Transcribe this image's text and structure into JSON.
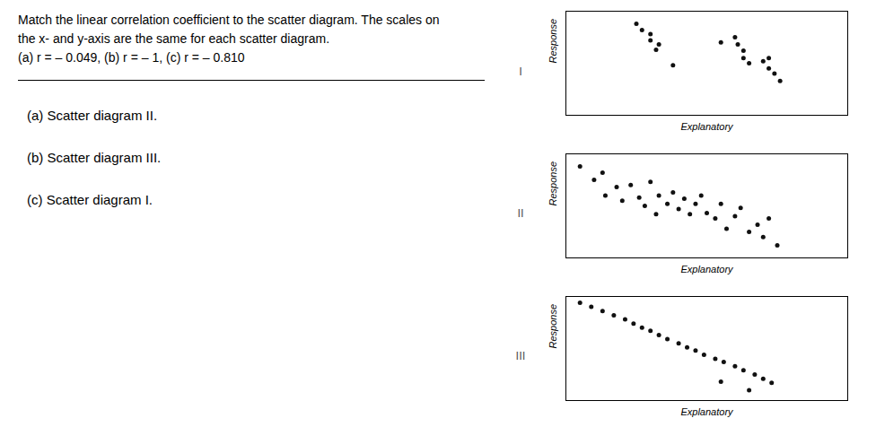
{
  "chart_data": [
    {
      "type": "scatter",
      "title": "I",
      "x_label": "Explanatory",
      "y_label": "Response",
      "color": "#111111",
      "xlim": [
        0,
        1
      ],
      "ylim": [
        0,
        1
      ],
      "tick_labels": false,
      "grid": false,
      "annotations": [
        "Match the linear correlation coefficient to the scatter diagram. The scales on\nthe x- and y-axis are the same for each scatter diagram.\n(a) r = – 0.049, (b) r = – 1, (c) r = – 0.810",
        "(a) Scatter diagram II.",
        "(b) Scatter diagram III.",
        "(c) Scatter diagram I."
      ],
      "x": [
        0.25,
        0.27,
        0.3,
        0.3,
        0.33,
        0.32,
        0.38,
        0.55,
        0.6,
        0.61,
        0.63,
        0.63,
        0.65,
        0.7,
        0.72,
        0.72,
        0.74,
        0.76
      ],
      "values": [
        0.88,
        0.82,
        0.78,
        0.72,
        0.68,
        0.63,
        0.48,
        0.7,
        0.75,
        0.68,
        0.62,
        0.55,
        0.5,
        0.52,
        0.55,
        0.45,
        0.4,
        0.33
      ]
    },
    {
      "type": "scatter",
      "title": "II",
      "x_label": "Explanatory",
      "y_label": "Response",
      "color": "#111111",
      "xlim": [
        0,
        1
      ],
      "ylim": [
        0,
        1
      ],
      "tick_labels": false,
      "grid": false,
      "x": [
        0.05,
        0.1,
        0.13,
        0.14,
        0.18,
        0.2,
        0.23,
        0.26,
        0.28,
        0.3,
        0.32,
        0.33,
        0.36,
        0.38,
        0.4,
        0.42,
        0.44,
        0.46,
        0.48,
        0.5,
        0.53,
        0.55,
        0.57,
        0.6,
        0.62,
        0.65,
        0.68,
        0.7,
        0.72,
        0.75
      ],
      "values": [
        0.88,
        0.75,
        0.82,
        0.6,
        0.68,
        0.55,
        0.7,
        0.58,
        0.5,
        0.73,
        0.42,
        0.6,
        0.52,
        0.63,
        0.47,
        0.57,
        0.42,
        0.52,
        0.6,
        0.43,
        0.38,
        0.52,
        0.28,
        0.4,
        0.48,
        0.25,
        0.32,
        0.2,
        0.38,
        0.12
      ]
    },
    {
      "type": "scatter",
      "title": "III",
      "x_label": "Explanatory",
      "y_label": "Response",
      "color": "#111111",
      "xlim": [
        0,
        1
      ],
      "ylim": [
        0,
        1
      ],
      "tick_labels": false,
      "grid": false,
      "x": [
        0.05,
        0.09,
        0.13,
        0.17,
        0.21,
        0.24,
        0.27,
        0.3,
        0.33,
        0.36,
        0.4,
        0.43,
        0.46,
        0.49,
        0.53,
        0.56,
        0.6,
        0.63,
        0.67,
        0.7,
        0.73,
        0.55,
        0.65
      ],
      "values": [
        0.94,
        0.9,
        0.86,
        0.82,
        0.78,
        0.74,
        0.7,
        0.67,
        0.63,
        0.59,
        0.55,
        0.51,
        0.48,
        0.44,
        0.4,
        0.37,
        0.33,
        0.29,
        0.25,
        0.21,
        0.17,
        0.18,
        0.1
      ]
    }
  ]
}
